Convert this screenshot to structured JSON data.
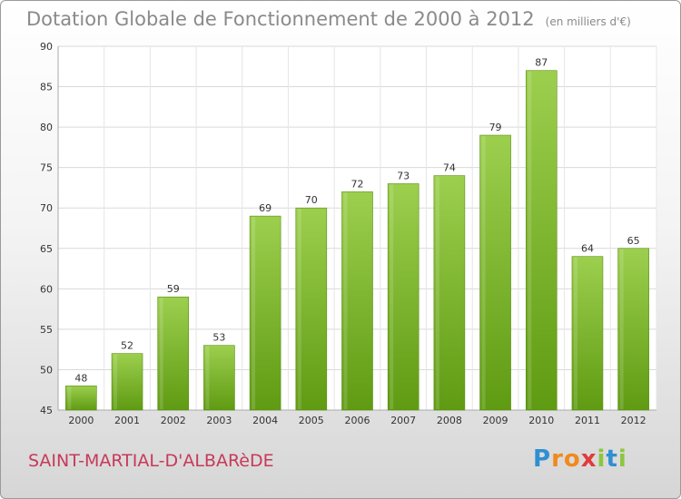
{
  "chart_data": {
    "type": "bar",
    "title": "Dotation Globale de Fonctionnement de 2000 à 2012",
    "subtitle": "(en milliers d'€)",
    "categories": [
      "2000",
      "2001",
      "2002",
      "2003",
      "2004",
      "2005",
      "2006",
      "2007",
      "2008",
      "2009",
      "2010",
      "2011",
      "2012"
    ],
    "values": [
      48,
      52,
      59,
      53,
      69,
      70,
      72,
      73,
      74,
      79,
      87,
      64,
      65
    ],
    "ylim": [
      45,
      90
    ],
    "yticks": [
      45,
      50,
      55,
      60,
      65,
      70,
      75,
      80,
      85,
      90
    ],
    "grid": true,
    "bar_color_top": "#9ccf4e",
    "bar_color_bottom": "#5f9b12"
  },
  "footer": {
    "town": "SAINT-MARTIAL-D'ALBARèDE",
    "logo_letters": [
      "P",
      "r",
      "o",
      "x",
      "i",
      "t",
      "i"
    ]
  }
}
